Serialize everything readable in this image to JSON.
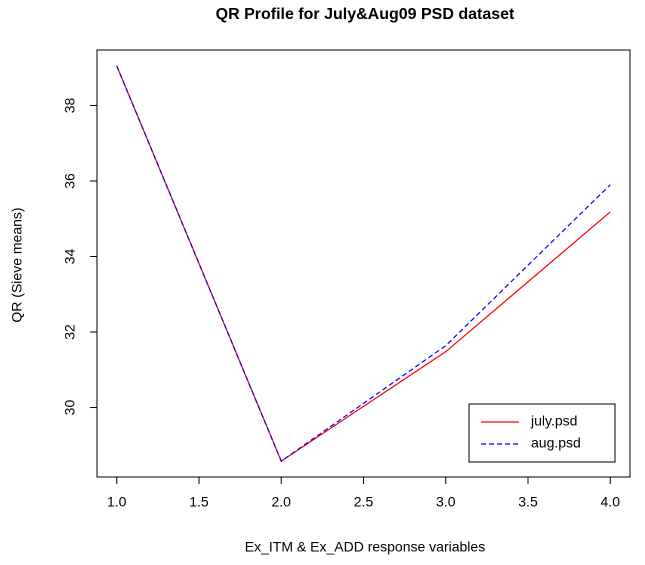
{
  "chart_data": {
    "type": "line",
    "title": "QR Profile for July&Aug09 PSD dataset",
    "x_label": "Ex_ITM & Ex_ADD response variables",
    "y_label": "QR (Sieve means)",
    "x": [
      1,
      2,
      3,
      4
    ],
    "series": [
      {
        "name": "july.psd",
        "color": "#ff0000",
        "dash": "solid",
        "values": [
          39.05,
          28.58,
          31.48,
          35.18
        ]
      },
      {
        "name": "aug.psd",
        "color": "#0000ff",
        "dash": "dashed",
        "values": [
          39.05,
          28.58,
          31.64,
          35.9
        ]
      }
    ],
    "xlim": [
      0.88,
      4.12
    ],
    "ylim": [
      28.16,
      39.47
    ],
    "xticks": [
      {
        "value": 1,
        "label": "1.0"
      },
      1.5,
      {
        "value": 2,
        "label": "2.0"
      },
      2.5,
      {
        "value": 3,
        "label": "3.0"
      },
      3.5,
      {
        "value": 4,
        "label": "4.0"
      }
    ],
    "yticks": [
      30,
      32,
      34,
      36,
      38
    ],
    "legend": "bottom-right"
  }
}
